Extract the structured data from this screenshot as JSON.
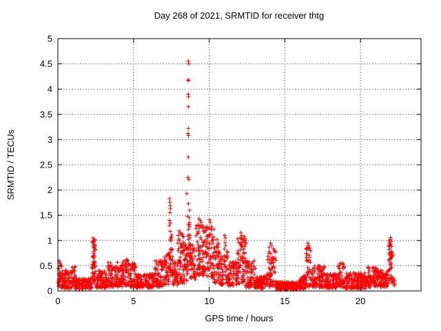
{
  "window": {
    "background": "#ffffff"
  },
  "chart_data": {
    "type": "scatter",
    "title": "Day 268 of 2021, SRMTID for receiver thtg",
    "xlabel": "GPS time / hours",
    "ylabel": "SRMTID / TECUs",
    "xlim": [
      0,
      24
    ],
    "ylim": [
      0,
      5
    ],
    "xticks": {
      "values": [
        0,
        5,
        10,
        15,
        20
      ],
      "labels": [
        "0",
        "5",
        "10",
        "15",
        "20"
      ]
    },
    "yticks": {
      "values": [
        0,
        0.5,
        1,
        1.5,
        2,
        2.5,
        3,
        3.5,
        4,
        4.5,
        5
      ],
      "labels": [
        "0",
        "0.5",
        "1",
        "1.5",
        "2",
        "2.5",
        "3",
        "3.5",
        "4",
        "4.5",
        "5"
      ]
    },
    "grid": true,
    "legend": "none",
    "marker": "plus",
    "marker_color": "#ff0000",
    "grid_color": "#8a8a8a",
    "axis_color": "#000000",
    "series_name": "SRMTID",
    "data_start_hour": 0.0,
    "data_end_hour": 22.3,
    "peak_points": [
      [
        8.62,
        4.55
      ],
      [
        8.65,
        4.5
      ],
      [
        8.6,
        4.18
      ],
      [
        8.64,
        4.17
      ],
      [
        8.61,
        3.9
      ],
      [
        8.63,
        3.85
      ],
      [
        8.62,
        3.65
      ],
      [
        8.62,
        3.22
      ],
      [
        8.6,
        3.12
      ],
      [
        8.63,
        3.08
      ],
      [
        8.62,
        2.65
      ],
      [
        8.59,
        2.25
      ],
      [
        8.66,
        2.21
      ],
      [
        8.52,
        1.93
      ],
      [
        8.63,
        1.73
      ],
      [
        8.7,
        1.6
      ],
      [
        8.56,
        1.48
      ],
      [
        8.68,
        1.45
      ],
      [
        7.38,
        1.83
      ],
      [
        7.4,
        1.76
      ],
      [
        7.42,
        1.69
      ],
      [
        7.44,
        1.63
      ],
      [
        7.41,
        1.55
      ],
      [
        7.37,
        1.4
      ],
      [
        7.43,
        1.35
      ],
      [
        8.02,
        1.19
      ],
      [
        8.08,
        1.15
      ],
      [
        8.15,
        1.12
      ],
      [
        7.95,
        1.1
      ],
      [
        8.22,
        1.13
      ],
      [
        9.32,
        1.43
      ],
      [
        9.4,
        1.4
      ],
      [
        9.47,
        1.36
      ],
      [
        9.25,
        1.3
      ],
      [
        10.02,
        1.41
      ],
      [
        10.08,
        1.36
      ],
      [
        10.15,
        1.28
      ],
      [
        9.97,
        1.25
      ],
      [
        10.52,
        1.02
      ],
      [
        11.02,
        1.1
      ],
      [
        11.06,
        1.05
      ],
      [
        12.1,
        1.16
      ],
      [
        12.15,
        1.1
      ],
      [
        12.05,
        1.05
      ],
      [
        12.2,
        1.02
      ],
      [
        14.05,
        0.95
      ],
      [
        14.12,
        0.9
      ],
      [
        16.52,
        0.95
      ],
      [
        16.56,
        0.9
      ],
      [
        2.32,
        1.05
      ],
      [
        2.35,
        1.0
      ],
      [
        2.3,
        0.96
      ],
      [
        21.98,
        1.06
      ],
      [
        22.0,
        1.02
      ],
      [
        22.03,
        0.98
      ],
      [
        0.08,
        0.6
      ],
      [
        0.12,
        0.57
      ]
    ],
    "density_bands": [
      {
        "x0": 0.02,
        "x1": 0.25,
        "ymin": 0.05,
        "ymax": 0.58,
        "n": 28,
        "bias": 1.2
      },
      {
        "x0": 0.25,
        "x1": 0.9,
        "ymin": 0.05,
        "ymax": 0.42,
        "n": 70,
        "bias": 1.4
      },
      {
        "x0": 0.9,
        "x1": 1.15,
        "ymin": 0.08,
        "ymax": 0.5,
        "n": 28,
        "bias": 1.3
      },
      {
        "x0": 1.15,
        "x1": 2.22,
        "ymin": 0.04,
        "ymax": 0.26,
        "n": 115,
        "bias": 1.2
      },
      {
        "x0": 2.25,
        "x1": 2.48,
        "ymin": 0.15,
        "ymax": 1.02,
        "n": 48,
        "bias": 1.1
      },
      {
        "x0": 2.5,
        "x1": 3.25,
        "ymin": 0.06,
        "ymax": 0.4,
        "n": 80,
        "bias": 1.4
      },
      {
        "x0": 3.3,
        "x1": 3.95,
        "ymin": 0.08,
        "ymax": 0.6,
        "n": 70,
        "bias": 1.5
      },
      {
        "x0": 3.95,
        "x1": 4.25,
        "ymin": 0.08,
        "ymax": 0.5,
        "n": 32,
        "bias": 1.4
      },
      {
        "x0": 4.25,
        "x1": 4.65,
        "ymin": 0.1,
        "ymax": 0.66,
        "n": 45,
        "bias": 1.4
      },
      {
        "x0": 4.65,
        "x1": 5.15,
        "ymin": 0.08,
        "ymax": 0.55,
        "n": 55,
        "bias": 1.4
      },
      {
        "x0": 5.15,
        "x1": 6.35,
        "ymin": 0.06,
        "ymax": 0.34,
        "n": 130,
        "bias": 1.2
      },
      {
        "x0": 6.35,
        "x1": 7.0,
        "ymin": 0.08,
        "ymax": 0.6,
        "n": 70,
        "bias": 1.4
      },
      {
        "x0": 7.0,
        "x1": 7.35,
        "ymin": 0.12,
        "ymax": 0.75,
        "n": 40,
        "bias": 1.3
      },
      {
        "x0": 7.35,
        "x1": 7.6,
        "ymin": 0.2,
        "ymax": 1.3,
        "n": 32,
        "bias": 1.2
      },
      {
        "x0": 7.6,
        "x1": 7.92,
        "ymin": 0.1,
        "ymax": 0.58,
        "n": 36,
        "bias": 1.3
      },
      {
        "x0": 7.92,
        "x1": 8.35,
        "ymin": 0.15,
        "ymax": 1.1,
        "n": 52,
        "bias": 1.3
      },
      {
        "x0": 8.35,
        "x1": 8.58,
        "ymin": 0.2,
        "ymax": 0.95,
        "n": 28,
        "bias": 1.2
      },
      {
        "x0": 8.58,
        "x1": 8.78,
        "ymin": 0.3,
        "ymax": 1.4,
        "n": 30,
        "bias": 1.0
      },
      {
        "x0": 8.78,
        "x1": 9.12,
        "ymin": 0.2,
        "ymax": 0.95,
        "n": 40,
        "bias": 1.2
      },
      {
        "x0": 9.12,
        "x1": 9.75,
        "ymin": 0.3,
        "ymax": 1.35,
        "n": 78,
        "bias": 1.2
      },
      {
        "x0": 9.75,
        "x1": 10.32,
        "ymin": 0.25,
        "ymax": 1.3,
        "n": 70,
        "bias": 1.2
      },
      {
        "x0": 10.32,
        "x1": 10.7,
        "ymin": 0.15,
        "ymax": 0.95,
        "n": 45,
        "bias": 1.3
      },
      {
        "x0": 10.7,
        "x1": 10.98,
        "ymin": 0.12,
        "ymax": 0.7,
        "n": 32,
        "bias": 1.3
      },
      {
        "x0": 10.98,
        "x1": 11.25,
        "ymin": 0.12,
        "ymax": 1.0,
        "n": 32,
        "bias": 1.3
      },
      {
        "x0": 11.25,
        "x1": 11.85,
        "ymin": 0.1,
        "ymax": 0.58,
        "n": 65,
        "bias": 1.3
      },
      {
        "x0": 11.85,
        "x1": 12.42,
        "ymin": 0.15,
        "ymax": 1.1,
        "n": 68,
        "bias": 1.2
      },
      {
        "x0": 12.42,
        "x1": 13.1,
        "ymin": 0.07,
        "ymax": 0.62,
        "n": 72,
        "bias": 1.5
      },
      {
        "x0": 13.1,
        "x1": 13.85,
        "ymin": 0.05,
        "ymax": 0.3,
        "n": 82,
        "bias": 1.2
      },
      {
        "x0": 13.85,
        "x1": 14.42,
        "ymin": 0.08,
        "ymax": 0.92,
        "n": 62,
        "bias": 1.5
      },
      {
        "x0": 14.42,
        "x1": 16.0,
        "ymin": 0.02,
        "ymax": 0.18,
        "n": 175,
        "bias": 1.1
      },
      {
        "x0": 16.0,
        "x1": 16.4,
        "ymin": 0.04,
        "ymax": 0.3,
        "n": 45,
        "bias": 1.2
      },
      {
        "x0": 16.4,
        "x1": 16.75,
        "ymin": 0.08,
        "ymax": 0.92,
        "n": 40,
        "bias": 1.5
      },
      {
        "x0": 16.75,
        "x1": 17.65,
        "ymin": 0.07,
        "ymax": 0.5,
        "n": 95,
        "bias": 1.4
      },
      {
        "x0": 17.65,
        "x1": 18.5,
        "ymin": 0.05,
        "ymax": 0.34,
        "n": 92,
        "bias": 1.2
      },
      {
        "x0": 18.5,
        "x1": 18.95,
        "ymin": 0.07,
        "ymax": 0.55,
        "n": 50,
        "bias": 1.3
      },
      {
        "x0": 18.95,
        "x1": 20.4,
        "ymin": 0.05,
        "ymax": 0.36,
        "n": 155,
        "bias": 1.2
      },
      {
        "x0": 20.4,
        "x1": 21.05,
        "ymin": 0.08,
        "ymax": 0.5,
        "n": 70,
        "bias": 1.3
      },
      {
        "x0": 21.05,
        "x1": 21.88,
        "ymin": 0.08,
        "ymax": 0.42,
        "n": 90,
        "bias": 1.2
      },
      {
        "x0": 21.88,
        "x1": 22.12,
        "ymin": 0.15,
        "ymax": 1.02,
        "n": 42,
        "bias": 1.0
      },
      {
        "x0": 22.12,
        "x1": 22.28,
        "ymin": 0.08,
        "ymax": 0.3,
        "n": 10,
        "bias": 1.2
      }
    ]
  }
}
